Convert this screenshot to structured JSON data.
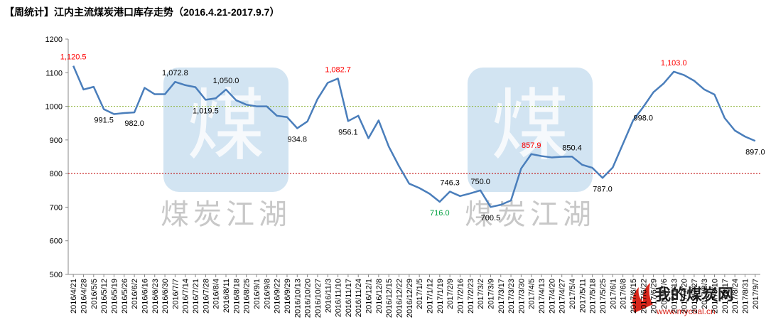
{
  "chart_data": {
    "type": "line",
    "title": "【周统计】江内主流煤炭港口库存走势（2016.4.21-2017.9.7）",
    "categories": [
      "2016/4/21",
      "2016/4/28",
      "2016/5/5",
      "2016/5/12",
      "2016/5/19",
      "2016/5/26",
      "2016/6/2",
      "2016/6/16",
      "2016/6/23",
      "2016/6/30",
      "2016/7/7",
      "2016/7/14",
      "2016/7/21",
      "2016/7/28",
      "2016/8/4",
      "2016/8/11",
      "2016/8/18",
      "2016/8/25",
      "2016/9/1",
      "2016/9/8",
      "2016/9/22",
      "2016/9/29",
      "2016/10/13",
      "2016/10/20",
      "2016/10/27",
      "2016/11/3",
      "2016/11/10",
      "2016/11/17",
      "2016/11/24",
      "2016/12/1",
      "2016/12/8",
      "2016/12/15",
      "2016/12/22",
      "2016/12/29",
      "2017/1/5",
      "2017/1/12",
      "2017/1/19",
      "2017/2/9",
      "2017/2/16",
      "2017/2/23",
      "2017/3/2",
      "2017/3/9",
      "2017/3/17",
      "2017/3/23",
      "2017/3/30",
      "2017/4/5",
      "2017/4/13",
      "2017/4/20",
      "2017/4/27",
      "2017/5/4",
      "2017/5/11",
      "2017/5/18",
      "2017/5/25",
      "2017/6/1",
      "2017/6/8",
      "2017/6/15",
      "2017/6/22",
      "2017/6/29",
      "2017/7/6",
      "2017/7/13",
      "2017/7/20",
      "2017/7/27",
      "2017/8/3",
      "2017/8/10",
      "2017/8/17",
      "2017/8/24",
      "2017/8/31",
      "2017/9/7"
    ],
    "values": [
      1120.5,
      1050,
      1058,
      991.5,
      977,
      980,
      982,
      1055,
      1036,
      1036,
      1072.8,
      1063,
      1057,
      1019.5,
      1024,
      1050,
      1018,
      1005,
      1000,
      1000,
      972,
      968,
      934.8,
      955,
      1022,
      1070,
      1082.7,
      956.1,
      972,
      905,
      958,
      880,
      822,
      770,
      757,
      740,
      716,
      746.3,
      733,
      741,
      750,
      700.5,
      707,
      720,
      815,
      857.9,
      852,
      848,
      850,
      850.4,
      826,
      817,
      787,
      818,
      888,
      958,
      998,
      1042,
      1068,
      1103,
      1093,
      1076,
      1050,
      1035,
      965,
      928,
      910,
      897
    ],
    "value_labels": [
      "1,120.5",
      null,
      null,
      "991.5",
      null,
      null,
      "982.0",
      null,
      null,
      null,
      "1,072.8",
      null,
      null,
      "1,019.5",
      null,
      "1,050.0",
      null,
      null,
      null,
      null,
      null,
      null,
      "934.8",
      null,
      null,
      null,
      "1,082.7",
      "956.1",
      null,
      null,
      null,
      null,
      null,
      null,
      null,
      null,
      "716.0",
      "746.3",
      null,
      null,
      "750.0",
      "700.5",
      null,
      null,
      null,
      "857.9",
      null,
      null,
      null,
      "850.4",
      null,
      null,
      "787.0",
      null,
      null,
      null,
      "998.0",
      null,
      null,
      "1,103.0",
      null,
      null,
      null,
      null,
      null,
      null,
      null,
      "897.0"
    ],
    "value_label_colors": [
      "#ff0000",
      null,
      null,
      "#000000",
      null,
      null,
      "#000000",
      null,
      null,
      null,
      "#000000",
      null,
      null,
      "#000000",
      null,
      "#000000",
      null,
      null,
      null,
      null,
      null,
      null,
      "#000000",
      null,
      null,
      null,
      "#ff0000",
      "#000000",
      null,
      null,
      null,
      null,
      null,
      null,
      null,
      null,
      "#00a040",
      "#000000",
      null,
      null,
      "#000000",
      "#000000",
      null,
      null,
      null,
      "#ff0000",
      null,
      null,
      null,
      "#000000",
      null,
      null,
      "#000000",
      null,
      null,
      null,
      "#000000",
      null,
      null,
      "#ff0000",
      null,
      null,
      null,
      null,
      null,
      null,
      null,
      "#000000"
    ],
    "color": "#4a7ebb",
    "ylim": [
      500,
      1200
    ],
    "yticks": [
      500,
      600,
      700,
      800,
      900,
      1000,
      1100,
      1200
    ],
    "reference_lines": [
      {
        "value": 1000,
        "color": "#8db33a"
      },
      {
        "value": 800,
        "color": "#c00000"
      }
    ],
    "watermark": "煤炭江湖",
    "watermark_logo": "煤",
    "site_name": "我的煤炭网",
    "site_url": "www.mycoal.cn"
  }
}
